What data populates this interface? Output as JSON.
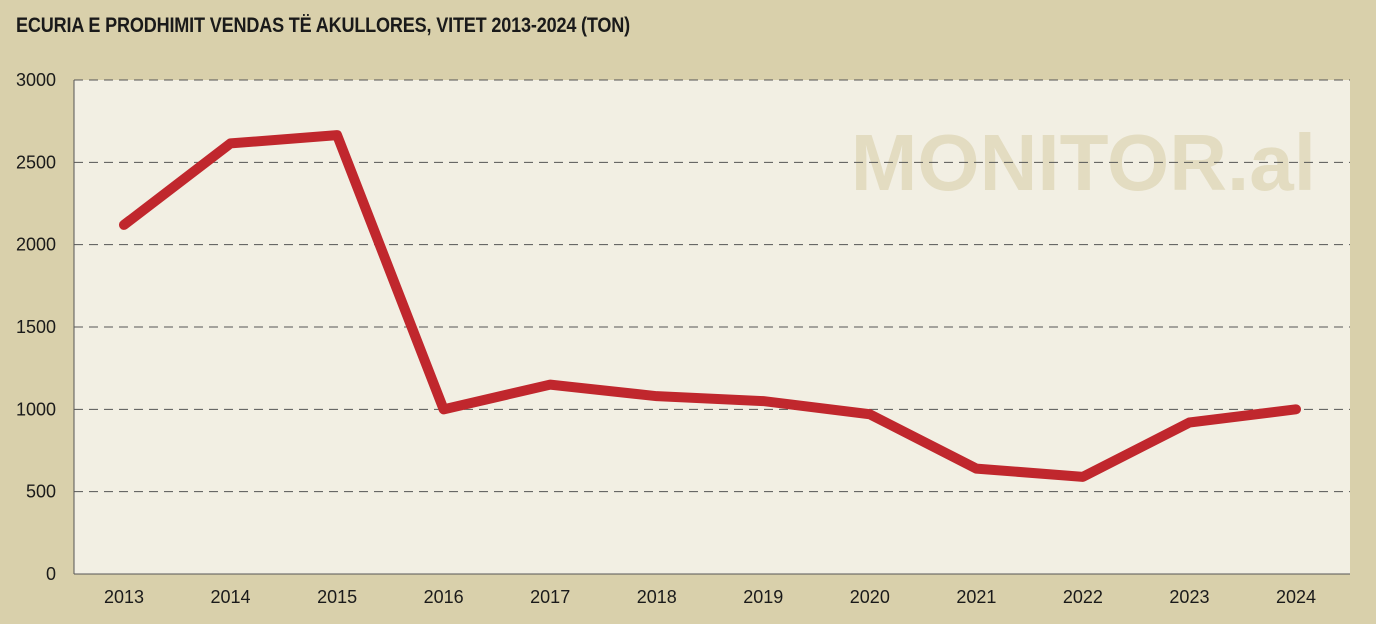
{
  "chart_data": {
    "type": "line",
    "title": "ECURIA E PRODHIMIT VENDAS TË AKULLORES, VITET 2013-2024 (TON)",
    "xlabel": "",
    "ylabel": "",
    "categories": [
      "2013",
      "2014",
      "2015",
      "2016",
      "2017",
      "2018",
      "2019",
      "2020",
      "2021",
      "2022",
      "2023",
      "2024"
    ],
    "series": [
      {
        "values": [
          2120,
          2615,
          2665,
          1000,
          1150,
          1080,
          1050,
          970,
          640,
          590,
          920,
          1000
        ]
      }
    ],
    "ylim": [
      0,
      3000
    ],
    "yticks": [
      0,
      500,
      1000,
      1500,
      2000,
      2500,
      3000
    ],
    "grid": true,
    "grid_style": "dashed",
    "legend": "none",
    "line_color": "#c0272d",
    "watermark": "MONITOR.al",
    "colors": {
      "background": "#d9d0ab",
      "plot_background": "#f2efe3",
      "line": "#c0272d",
      "grid": "#555555"
    }
  }
}
